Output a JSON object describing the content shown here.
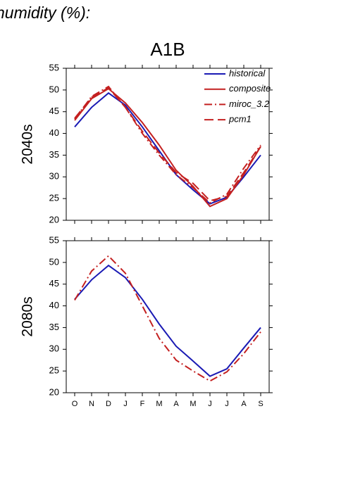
{
  "page_title": "humidity (%):",
  "scenario": "A1B",
  "chart_data": [
    {
      "type": "line",
      "ylabel": "2040s",
      "legend": "upper right",
      "ylim": [
        20,
        55
      ],
      "yticks": [
        20,
        25,
        30,
        35,
        40,
        45,
        50,
        55
      ],
      "series": [
        {
          "name": "historical",
          "color": "#1a1ab4",
          "style": "solid",
          "values": [
            41.5,
            46,
            49.3,
            46.5,
            41.5,
            36,
            30.5,
            27,
            23.8,
            25.3,
            30,
            35
          ]
        },
        {
          "name": "composite",
          "color": "#c42020",
          "style": "solid",
          "values": [
            43,
            48,
            50.3,
            47,
            42.5,
            37.3,
            31.5,
            27.8,
            23.2,
            25,
            30.5,
            37
          ]
        },
        {
          "name": "miroc_3.2",
          "color": "#c42020",
          "style": "dashdot",
          "values": [
            43.3,
            48.5,
            50.8,
            46,
            40,
            35,
            30.5,
            27.5,
            24,
            26,
            32,
            37.3
          ]
        },
        {
          "name": "pcm1",
          "color": "#c42020",
          "style": "dashed",
          "values": [
            43.5,
            48.3,
            50.5,
            46,
            40.5,
            35.5,
            31,
            28.5,
            24.5,
            25.5,
            31,
            37
          ]
        }
      ]
    },
    {
      "type": "line",
      "ylabel": "2080s",
      "categories": [
        "O",
        "N",
        "D",
        "J",
        "F",
        "M",
        "A",
        "M",
        "J",
        "J",
        "A",
        "S"
      ],
      "ylim": [
        20,
        55
      ],
      "yticks": [
        20,
        25,
        30,
        35,
        40,
        45,
        50,
        55
      ],
      "series": [
        {
          "color": "#1a1ab4",
          "style": "solid",
          "values": [
            41.5,
            46,
            49.3,
            46.5,
            41.5,
            35.8,
            30.7,
            27.3,
            23.8,
            25.5,
            30.3,
            35
          ]
        },
        {
          "color": "#c42020",
          "style": "dashdot",
          "values": [
            41.3,
            48,
            51.5,
            47.5,
            40,
            32.5,
            27.5,
            25,
            22.7,
            24.8,
            29,
            34
          ]
        }
      ]
    }
  ]
}
